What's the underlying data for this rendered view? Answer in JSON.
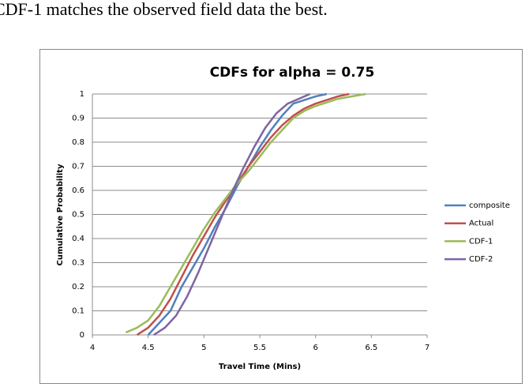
{
  "caption": "CDF-1 matches the observed field data the best.",
  "chart_data": {
    "type": "line",
    "title": "CDFs for alpha = 0.75",
    "xlabel": "Travel Time (Mins)",
    "ylabel": "Cumulative Probability",
    "xlim": [
      4,
      7
    ],
    "xticks": [
      4,
      4.5,
      5,
      5.5,
      6,
      6.5,
      7
    ],
    "ylim": [
      0,
      1
    ],
    "yticks": [
      0,
      0.1,
      0.2,
      0.3,
      0.4,
      0.5,
      0.6,
      0.7,
      0.8,
      0.9,
      1
    ],
    "grid": true,
    "legend": "right",
    "series": [
      {
        "name": "composite",
        "color": "#4f81bd",
        "x": [
          4.5,
          4.6,
          4.7,
          4.8,
          4.9,
          5.0,
          5.1,
          5.2,
          5.3,
          5.4,
          5.5,
          5.6,
          5.7,
          5.8,
          6.0,
          6.1
        ],
        "values": [
          0,
          0.05,
          0.1,
          0.2,
          0.28,
          0.36,
          0.45,
          0.53,
          0.62,
          0.7,
          0.78,
          0.85,
          0.91,
          0.96,
          0.99,
          1
        ]
      },
      {
        "name": "Actual",
        "color": "#c0504d",
        "x": [
          4.4,
          4.5,
          4.6,
          4.7,
          4.8,
          4.9,
          5.0,
          5.1,
          5.2,
          5.3,
          5.4,
          5.5,
          5.6,
          5.7,
          5.8,
          5.9,
          6.0,
          6.2,
          6.3
        ],
        "values": [
          0,
          0.03,
          0.08,
          0.15,
          0.24,
          0.33,
          0.41,
          0.49,
          0.56,
          0.63,
          0.7,
          0.76,
          0.82,
          0.87,
          0.91,
          0.94,
          0.96,
          0.99,
          1
        ]
      },
      {
        "name": "CDF-1",
        "color": "#9bbb59",
        "x": [
          4.3,
          4.4,
          4.5,
          4.6,
          4.7,
          4.8,
          4.9,
          5.0,
          5.1,
          5.2,
          5.3,
          5.4,
          5.5,
          5.6,
          5.7,
          5.8,
          5.9,
          6.0,
          6.2,
          6.45
        ],
        "values": [
          0.01,
          0.03,
          0.06,
          0.12,
          0.2,
          0.28,
          0.36,
          0.44,
          0.51,
          0.57,
          0.63,
          0.68,
          0.74,
          0.8,
          0.85,
          0.9,
          0.93,
          0.95,
          0.98,
          1
        ]
      },
      {
        "name": "CDF-2",
        "color": "#8064a2",
        "x": [
          4.55,
          4.65,
          4.75,
          4.85,
          4.95,
          5.05,
          5.15,
          5.25,
          5.35,
          5.45,
          5.55,
          5.65,
          5.75,
          5.85,
          5.95
        ],
        "values": [
          0,
          0.03,
          0.08,
          0.16,
          0.26,
          0.37,
          0.48,
          0.59,
          0.69,
          0.78,
          0.86,
          0.92,
          0.96,
          0.98,
          1
        ]
      }
    ]
  }
}
